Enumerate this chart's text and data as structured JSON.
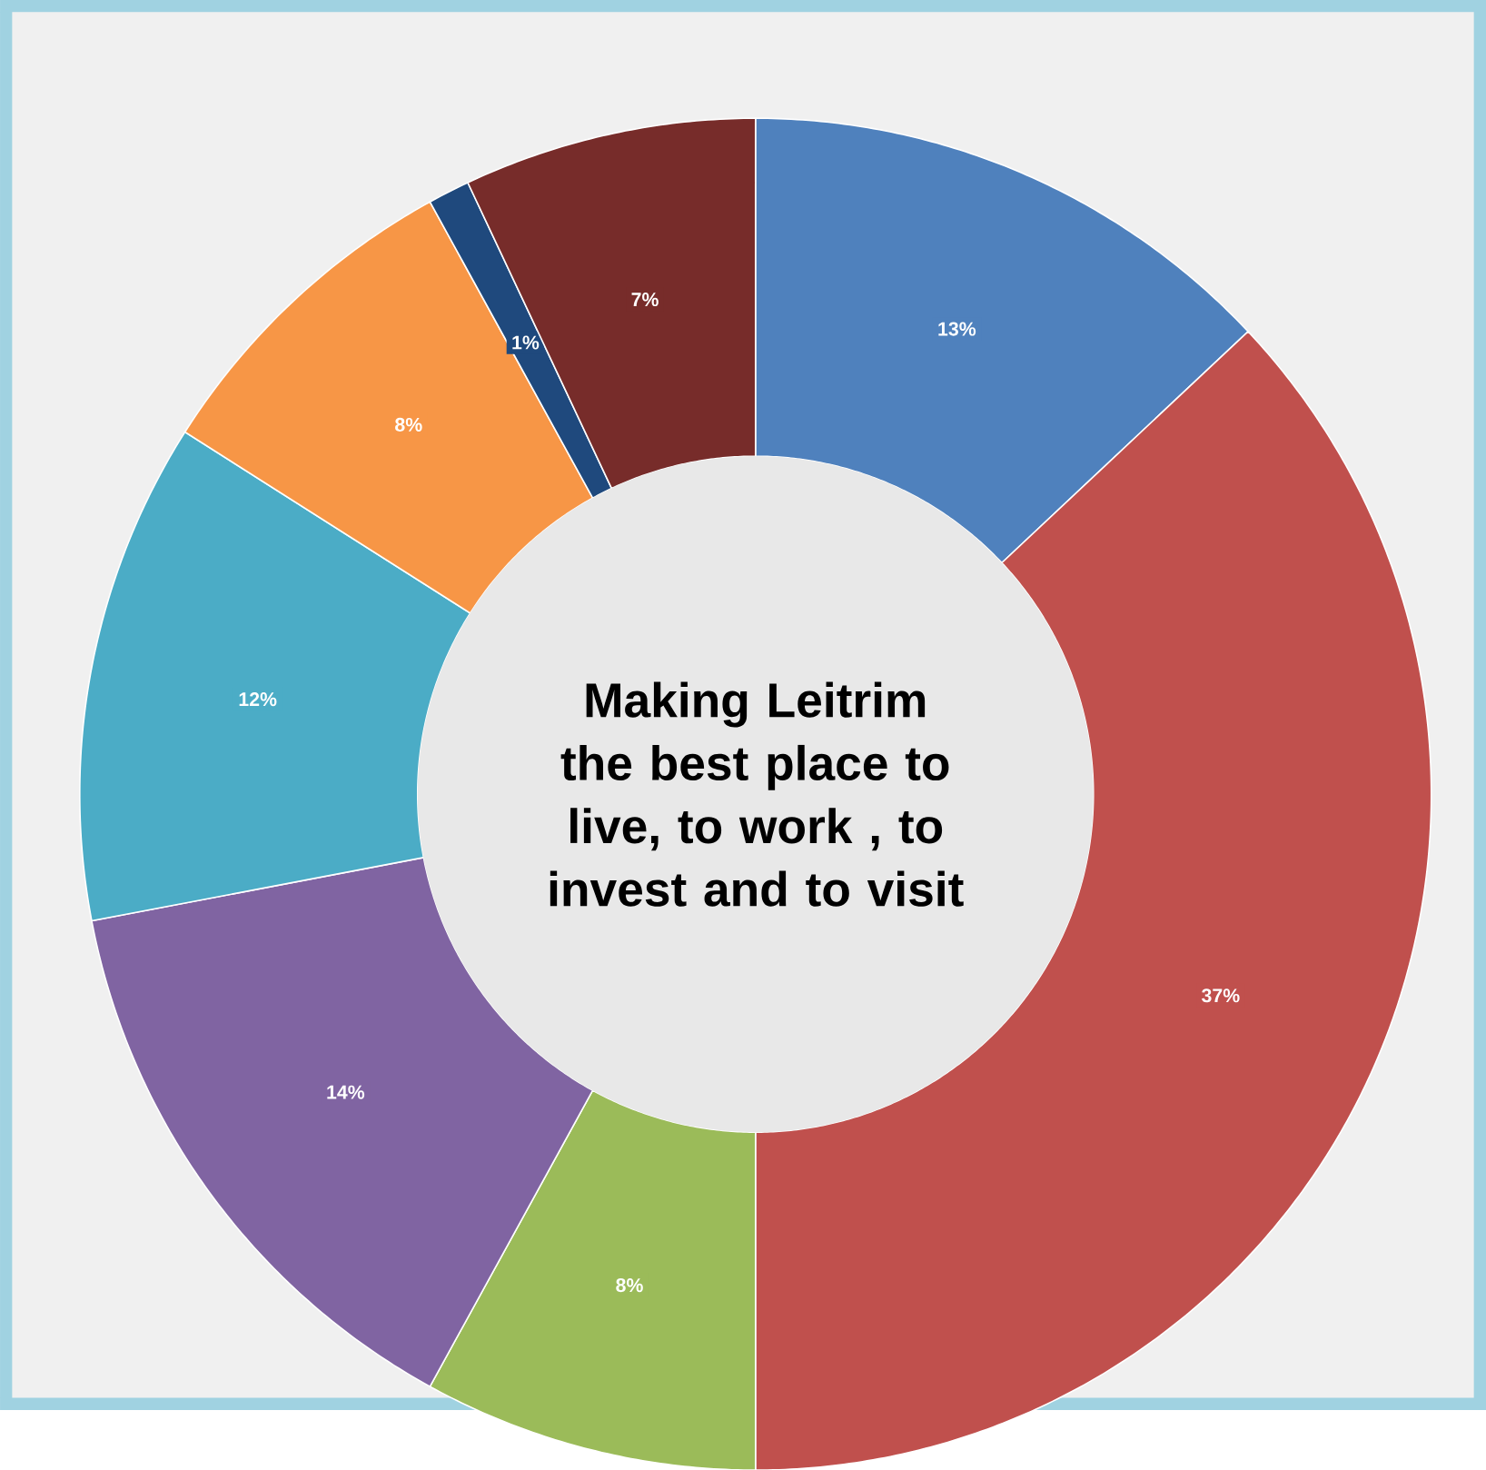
{
  "chart_data": {
    "type": "donut",
    "title": "Making Leitrim the best place to live,  to work , to invest and to visit",
    "categories": [
      null,
      null,
      null,
      null,
      null,
      null,
      null,
      null
    ],
    "values": [
      13,
      37,
      8,
      14,
      12,
      8,
      1,
      7
    ],
    "colors": [
      "#4f81bd",
      "#c0504d",
      "#9bbb59",
      "#8064a2",
      "#4bacc6",
      "#f79646",
      "#1f497d",
      "#772c2a"
    ],
    "value_labels": [
      "13%",
      "37%",
      "8%",
      "14%",
      "12%",
      "8%",
      "1%",
      "7%"
    ]
  }
}
